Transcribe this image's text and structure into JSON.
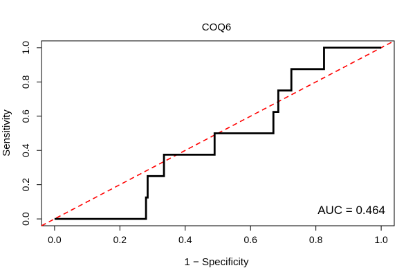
{
  "chart_data": {
    "type": "line",
    "title": "COQ6",
    "xlabel": "1 − Specificity",
    "ylabel": "Sensitivity",
    "xlim": [
      -0.04,
      1.04
    ],
    "ylim": [
      -0.04,
      1.04
    ],
    "x_ticks": [
      0.0,
      0.2,
      0.4,
      0.6,
      0.8,
      1.0
    ],
    "x_tick_labels": [
      "0.0",
      "0.2",
      "0.4",
      "0.6",
      "0.8",
      "1.0"
    ],
    "y_ticks": [
      0.0,
      0.2,
      0.4,
      0.6,
      0.8,
      1.0
    ],
    "y_tick_labels": [
      "0.0",
      "0.2",
      "0.4",
      "0.6",
      "0.8",
      "1.0"
    ],
    "grid": false,
    "annotation": "AUC = 0.464",
    "series": [
      {
        "color": "#000000",
        "style": "solid",
        "x": [
          0.0,
          0.28,
          0.28,
          0.285,
          0.285,
          0.335,
          0.335,
          0.49,
          0.49,
          0.67,
          0.67,
          0.685,
          0.685,
          0.725,
          0.725,
          0.825,
          0.825,
          1.0
        ],
        "y": [
          0.0,
          0.0,
          0.125,
          0.125,
          0.25,
          0.25,
          0.375,
          0.375,
          0.5,
          0.5,
          0.625,
          0.625,
          0.75,
          0.75,
          0.875,
          0.875,
          1.0,
          1.0
        ]
      },
      {
        "color": "#ff0000",
        "style": "dashed",
        "x": [
          -0.04,
          1.04
        ],
        "y": [
          -0.04,
          1.04
        ]
      }
    ]
  }
}
